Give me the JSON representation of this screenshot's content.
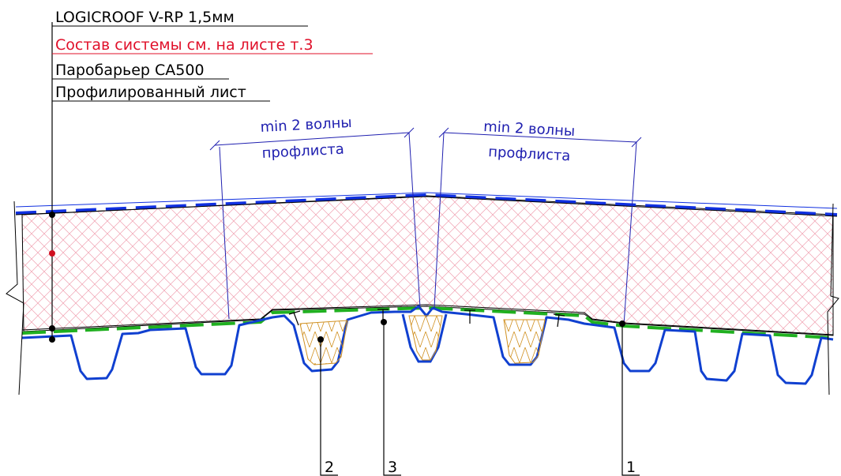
{
  "layers": [
    {
      "text": "LOGICROOF V-RP 1,5мм",
      "color": "#000000"
    },
    {
      "text": "Состав системы см. на листе т.3",
      "color": "#e0102a"
    },
    {
      "text": "Паробарьер СА500",
      "color": "#000000"
    },
    {
      "text": "Профилированный лист",
      "color": "#000000"
    }
  ],
  "dimensions": [
    {
      "line1": "min 2 волны",
      "line2": "профлиста"
    },
    {
      "line1": "min 2 волны",
      "line2": "профлиста"
    }
  ],
  "callouts": [
    {
      "number": "2"
    },
    {
      "number": "3"
    },
    {
      "number": "1"
    }
  ],
  "colors": {
    "membrane": "#1030e0",
    "insulation_hatch": "#f0a0b0",
    "vapor_barrier": "#20b020",
    "deck": "#1040d0",
    "filler": "#e8b030",
    "dimension": "#2020b0",
    "leader": "#000000",
    "highlight_dot": "#d01020"
  }
}
